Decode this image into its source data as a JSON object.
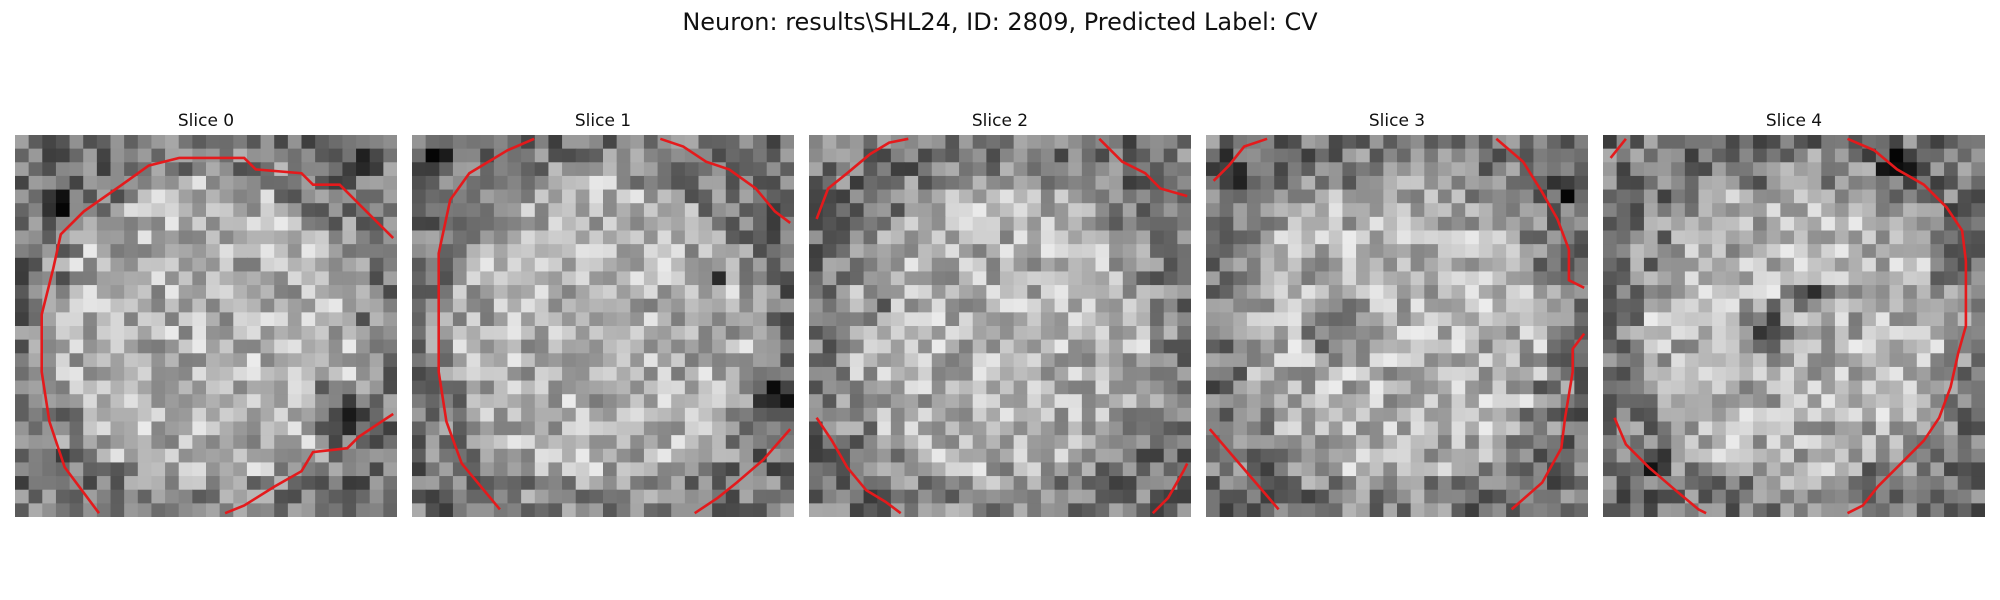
{
  "figure": {
    "title": "Neuron: results\\SHL24, ID: 2809, Predicted Label: CV"
  },
  "slices": [
    {
      "title": "Slice 0",
      "seed": 11,
      "dark_spots": [
        [
          0.83,
          0.72,
          0.1
        ],
        [
          0.92,
          0.08,
          0.05
        ],
        [
          0.12,
          0.18,
          0.06
        ]
      ]
    },
    {
      "title": "Slice 1",
      "seed": 23,
      "dark_spots": [
        [
          0.95,
          0.68,
          0.07
        ],
        [
          0.06,
          0.06,
          0.07
        ],
        [
          0.8,
          0.38,
          0.04
        ]
      ]
    },
    {
      "title": "Slice 2",
      "seed": 37,
      "dark_spots": [
        [
          0.18,
          0.45,
          0.05
        ],
        [
          0.52,
          0.88,
          0.04
        ],
        [
          0.9,
          0.78,
          0.04
        ]
      ]
    },
    {
      "title": "Slice 3",
      "seed": 41,
      "dark_spots": [
        [
          0.33,
          0.5,
          0.1
        ],
        [
          0.95,
          0.15,
          0.05
        ],
        [
          0.05,
          0.1,
          0.06
        ],
        [
          0.22,
          0.93,
          0.05
        ]
      ]
    },
    {
      "title": "Slice 4",
      "seed": 53,
      "dark_spots": [
        [
          0.43,
          0.5,
          0.09
        ],
        [
          0.54,
          0.43,
          0.07
        ],
        [
          0.77,
          0.08,
          0.06
        ],
        [
          0.14,
          0.86,
          0.05
        ]
      ]
    }
  ],
  "colors": {
    "contour": "#e41a1c",
    "grid_min": "#000000",
    "grid_max": "#ffffff"
  }
}
